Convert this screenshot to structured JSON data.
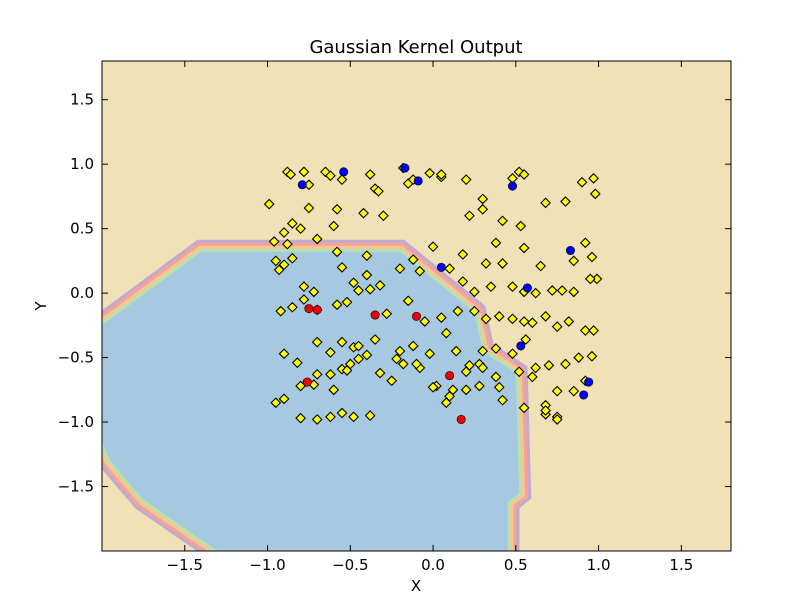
{
  "chart_data": {
    "type": "scatter",
    "title": "Gaussian Kernel Output",
    "xlabel": "X",
    "ylabel": "Y",
    "xlim": [
      -2.0,
      1.8
    ],
    "ylim": [
      -2.0,
      1.8
    ],
    "xticks": [
      -1.5,
      -1.0,
      -0.5,
      0.0,
      0.5,
      1.0,
      1.5
    ],
    "yticks": [
      -1.5,
      -1.0,
      -0.5,
      0.0,
      0.5,
      1.0,
      1.5
    ],
    "xtick_labels": [
      "−1.5",
      "−1.0",
      "−0.5",
      "0.0",
      "0.5",
      "1.0",
      "1.5"
    ],
    "ytick_labels": [
      "−1.5",
      "−1.0",
      "−0.5",
      "0.0",
      "0.5",
      "1.0",
      "1.5"
    ],
    "grid": false,
    "colors": {
      "outside_region": "#f0e2b6",
      "inside_region": "#a6c8e0",
      "band_green": "#b7e2a8",
      "band_orange": "#f9c39a",
      "band_red": "#f2a593",
      "band_purple": "#c2a9d4",
      "diamond": "#ffff00",
      "red_point": "#ee0000",
      "blue_point": "#0000ee"
    },
    "decision_boundary": [
      [
        -2.0,
        -0.25
      ],
      [
        -1.4,
        0.32
      ],
      [
        -0.2,
        0.32
      ],
      [
        0.25,
        -0.15
      ],
      [
        0.3,
        -0.45
      ],
      [
        0.5,
        -0.62
      ],
      [
        0.52,
        -1.55
      ],
      [
        0.45,
        -1.62
      ],
      [
        0.45,
        -2.0
      ],
      [
        -1.3,
        -2.0
      ],
      [
        -1.75,
        -1.6
      ],
      [
        -1.95,
        -1.3
      ],
      [
        -2.0,
        -1.15
      ]
    ],
    "series": [
      {
        "marker": "diamond",
        "x": [
          -0.99,
          -0.88,
          -0.86,
          -0.75,
          -0.78,
          -0.65,
          -0.62,
          -0.55,
          -0.58,
          -0.38,
          -0.35,
          -0.33,
          -0.18,
          -0.15,
          -0.12,
          -0.02,
          0.05,
          0.2,
          0.3,
          0.48,
          0.52,
          0.55,
          0.9,
          0.97,
          -0.96,
          -0.9,
          -0.85,
          -0.75,
          -0.6,
          -0.42,
          -0.3,
          0.05,
          0.22,
          0.3,
          0.42,
          0.53,
          0.68,
          0.8,
          0.98,
          -0.95,
          -0.88,
          -0.8,
          -0.7,
          -0.58,
          -0.4,
          -0.12,
          0.0,
          0.18,
          0.32,
          0.38,
          0.55,
          0.65,
          0.85,
          0.92,
          0.96,
          0.99,
          -0.93,
          -0.9,
          -0.85,
          -0.78,
          -0.72,
          -0.55,
          -0.48,
          -0.4,
          -0.32,
          -0.2,
          -0.08,
          0.1,
          0.18,
          0.25,
          0.35,
          0.42,
          0.48,
          0.55,
          0.62,
          0.72,
          0.78,
          0.85,
          0.95,
          -0.92,
          -0.85,
          -0.78,
          -0.7,
          -0.58,
          -0.52,
          -0.45,
          -0.38,
          -0.28,
          -0.15,
          -0.05,
          0.05,
          0.15,
          0.25,
          0.32,
          0.4,
          0.48,
          0.55,
          0.6,
          0.68,
          0.75,
          0.82,
          0.92,
          0.97,
          -0.9,
          -0.82,
          -0.7,
          -0.62,
          -0.55,
          -0.48,
          -0.4,
          -0.35,
          -0.22,
          -0.12,
          -0.02,
          0.08,
          0.14,
          0.22,
          0.28,
          0.38,
          0.48,
          0.56,
          0.62,
          0.7,
          0.8,
          0.88,
          0.96,
          -0.95,
          -0.8,
          -0.7,
          -0.62,
          -0.55,
          -0.5,
          -0.45,
          -0.32,
          -0.18,
          -0.08,
          0.02,
          0.12,
          0.2,
          0.3,
          0.4,
          0.52,
          0.6,
          0.68,
          0.75,
          0.85,
          0.92,
          -0.9,
          -0.8,
          -0.7,
          -0.62,
          -0.55,
          -0.48,
          -0.38,
          -0.2,
          -0.1,
          0.0,
          0.1,
          0.2,
          0.3,
          0.42,
          0.55,
          0.68,
          0.75,
          -0.72,
          -0.6,
          -0.52,
          -0.45,
          -0.25,
          0.08,
          0.28,
          0.38,
          0.68,
          0.75
        ],
        "y": [
          0.69,
          0.94,
          0.92,
          0.84,
          0.94,
          0.94,
          0.91,
          0.88,
          0.65,
          0.92,
          0.81,
          0.79,
          0.97,
          0.85,
          0.88,
          0.93,
          0.9,
          0.88,
          0.73,
          0.89,
          0.94,
          0.92,
          0.86,
          0.89,
          0.4,
          0.47,
          0.54,
          0.66,
          0.52,
          0.62,
          0.6,
          0.92,
          0.6,
          0.65,
          0.56,
          0.52,
          0.7,
          0.71,
          0.77,
          0.25,
          0.38,
          0.5,
          0.42,
          0.32,
          0.29,
          0.26,
          0.36,
          0.3,
          0.23,
          0.39,
          0.35,
          0.21,
          0.25,
          0.39,
          0.28,
          0.11,
          0.18,
          0.22,
          0.27,
          0.05,
          0.01,
          0.2,
          0.08,
          0.14,
          0.06,
          0.19,
          0.17,
          0.19,
          0.09,
          0.01,
          0.05,
          0.23,
          0.05,
          0.01,
          0.0,
          0.02,
          0.02,
          0.01,
          0.11,
          -0.14,
          -0.11,
          -0.05,
          -0.13,
          -0.09,
          -0.07,
          0.02,
          0.03,
          -0.16,
          -0.06,
          -0.22,
          -0.19,
          -0.14,
          -0.14,
          -0.2,
          -0.18,
          -0.2,
          -0.22,
          -0.23,
          -0.18,
          -0.26,
          -0.22,
          -0.29,
          -0.29,
          -0.47,
          -0.54,
          -0.38,
          -0.46,
          -0.38,
          -0.42,
          -0.48,
          -0.36,
          -0.51,
          -0.41,
          -0.47,
          -0.31,
          -0.45,
          -0.56,
          -0.55,
          -0.43,
          -0.47,
          -0.36,
          -0.58,
          -0.56,
          -0.55,
          -0.5,
          -0.49,
          -0.85,
          -0.72,
          -0.63,
          -0.63,
          -0.59,
          -0.55,
          -0.41,
          -0.62,
          -0.55,
          -0.58,
          -0.72,
          -0.75,
          -0.61,
          -0.58,
          -0.73,
          -0.61,
          -0.65,
          -0.87,
          -0.76,
          -0.76,
          -0.68,
          -0.82,
          -0.97,
          -0.98,
          -0.96,
          -0.93,
          -0.96,
          -0.95,
          -0.45,
          -0.55,
          -0.73,
          -0.8,
          -0.75,
          -0.45,
          -0.83,
          -0.89,
          -0.94,
          -0.96,
          -0.71,
          -0.75,
          -0.6,
          -0.51,
          -0.68,
          -0.85,
          -0.72,
          -0.65,
          -0.91,
          -0.98
        ]
      },
      {
        "marker": "red-circle",
        "x": [
          -0.75,
          -0.7,
          -0.35,
          -0.1,
          -0.76,
          0.1,
          0.17
        ],
        "y": [
          -0.12,
          -0.13,
          -0.17,
          -0.18,
          -0.69,
          -0.64,
          -0.98
        ]
      },
      {
        "marker": "blue-circle",
        "x": [
          -0.79,
          -0.54,
          -0.17,
          -0.09,
          0.48,
          0.83,
          0.05,
          0.57,
          0.53,
          0.94,
          0.91
        ],
        "y": [
          0.84,
          0.94,
          0.97,
          0.87,
          0.83,
          0.33,
          0.2,
          0.04,
          -0.41,
          -0.69,
          -0.79
        ]
      }
    ]
  }
}
